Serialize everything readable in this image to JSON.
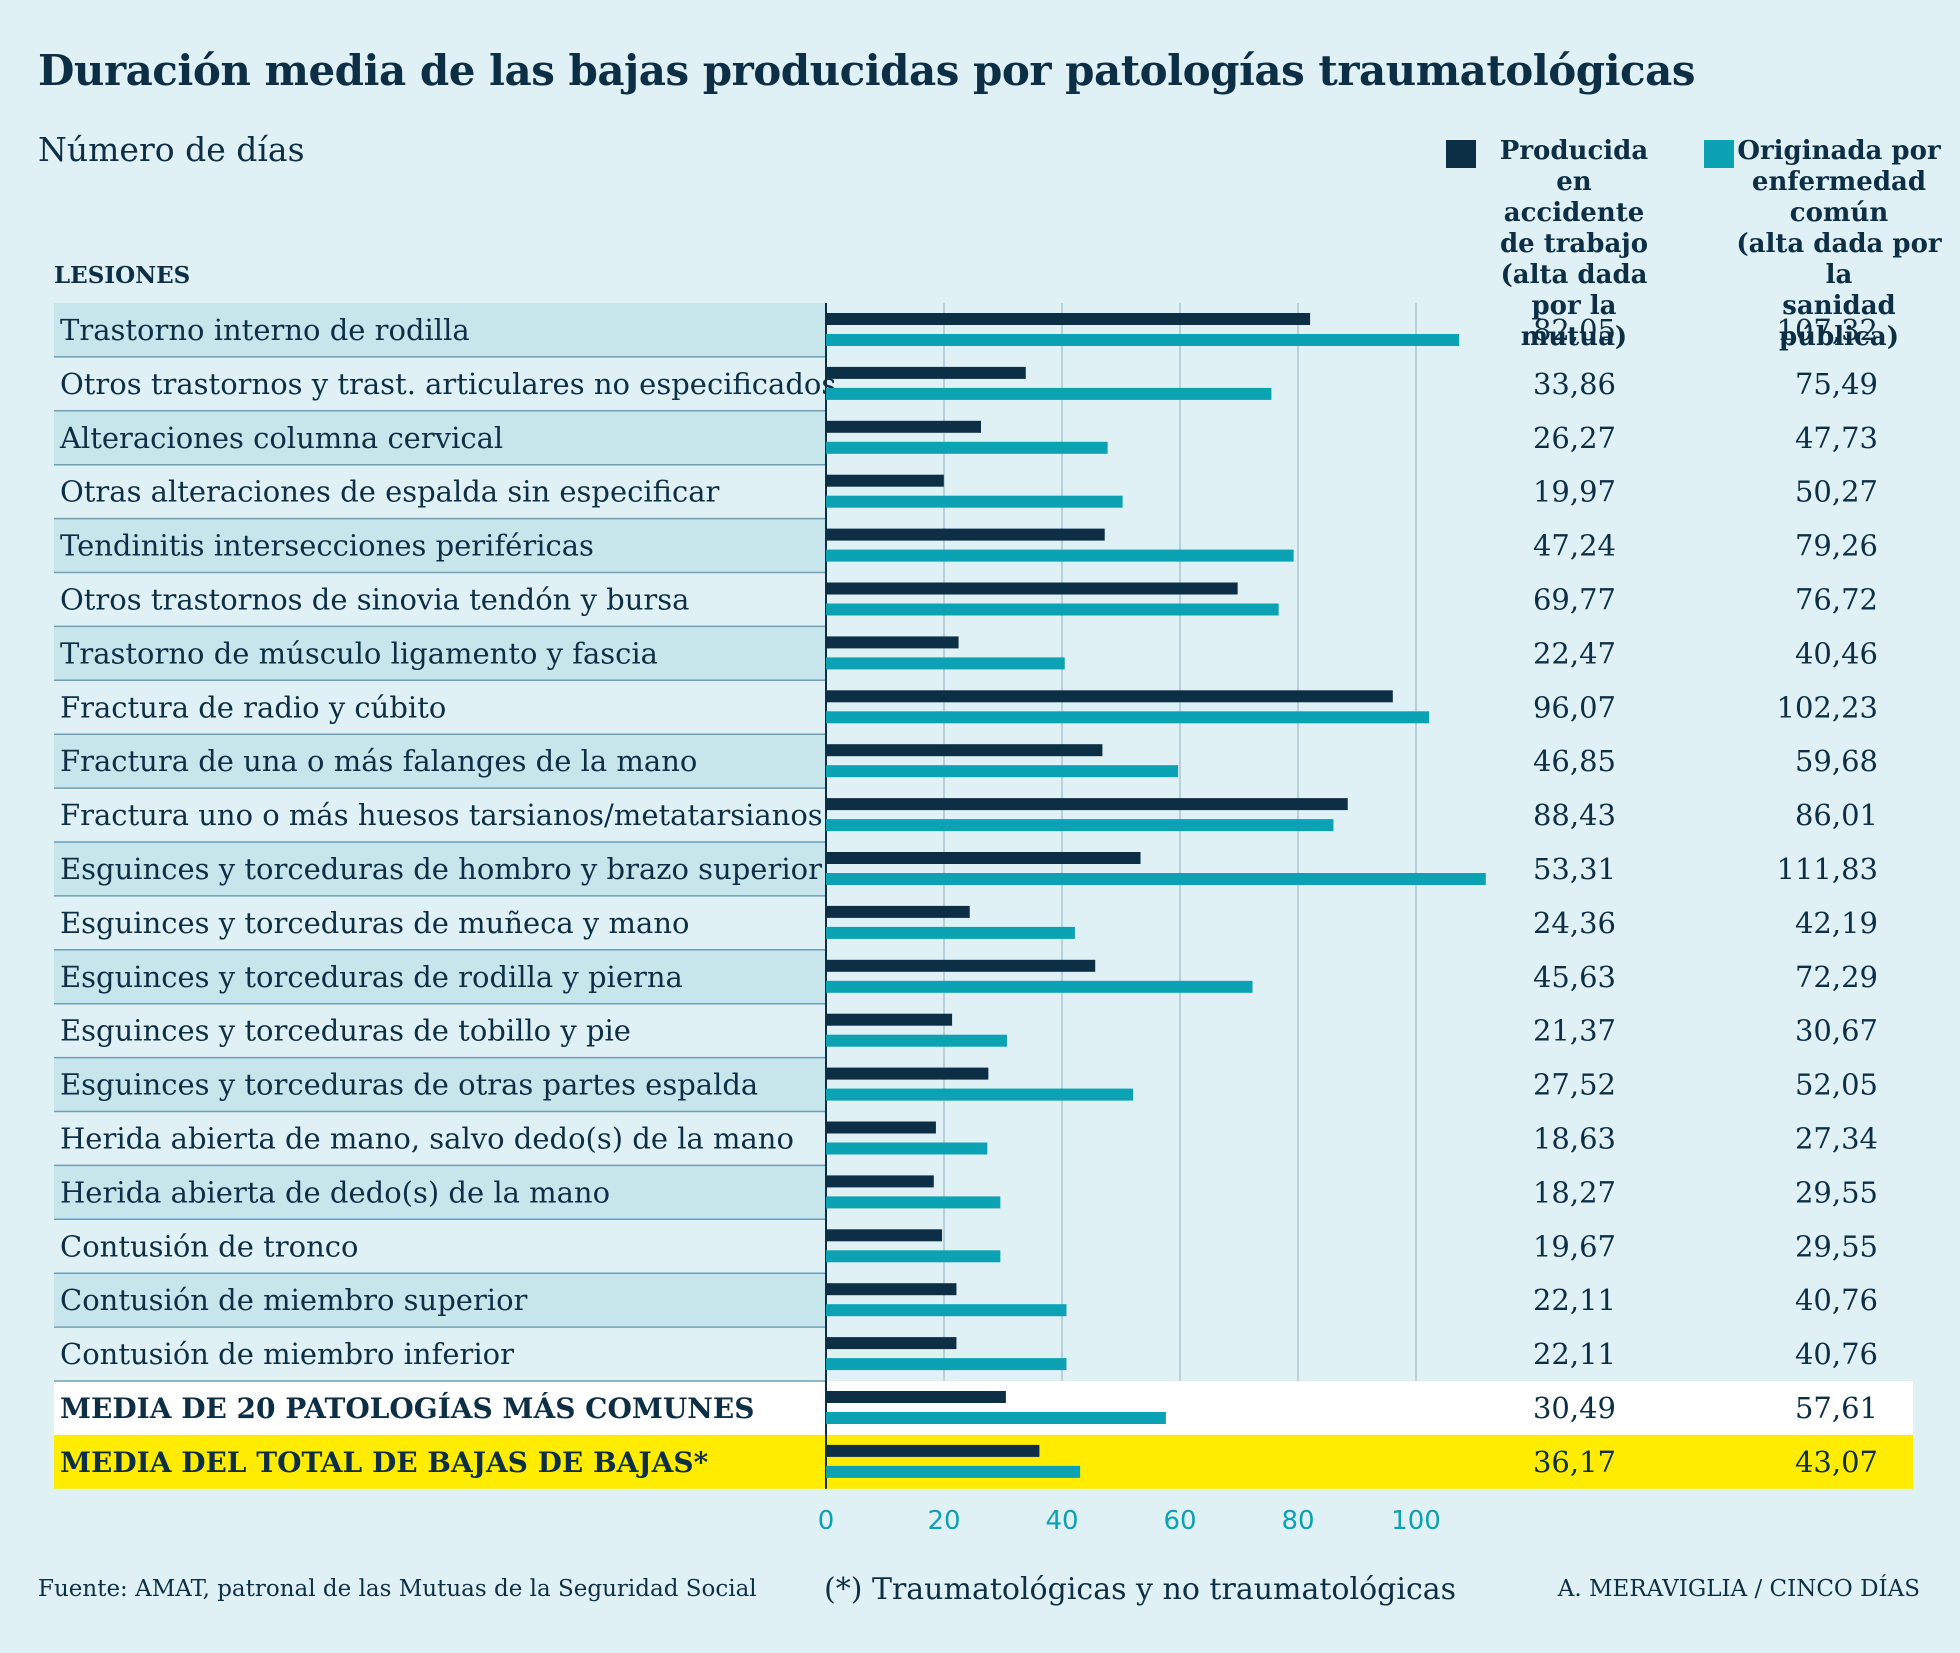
{
  "header": {
    "title": "Duración media de las bajas producidas por patologías traumatológicas",
    "subtitle": "Número de días",
    "column_heading": "LESIONES"
  },
  "legend": {
    "work": {
      "lines": [
        "Producida en",
        "accidente",
        "de trabajo",
        "(alta dada",
        "por la mutua)"
      ],
      "color": "#0d2f45"
    },
    "common": {
      "lines": [
        "Originada por",
        "enfermedad",
        "común",
        "(alta dada por la",
        "sanidad pública)"
      ],
      "color": "#0ba2b4"
    }
  },
  "chart_data": {
    "type": "bar",
    "orientation": "horizontal",
    "xlim": [
      0,
      100
    ],
    "x_ticks": [
      "0",
      "20",
      "40",
      "60",
      "80",
      "100"
    ],
    "series": [
      {
        "key": "work",
        "color": "#0d2f45"
      },
      {
        "key": "common",
        "color": "#0ba2b4"
      }
    ],
    "rows": [
      {
        "label": "Trastorno interno de rodilla",
        "work": 82.05,
        "common": 107.32,
        "work_text": "82,05",
        "common_text": "107,32"
      },
      {
        "label": "Otros trastornos y trast. articulares no especificados",
        "work": 33.86,
        "common": 75.49,
        "work_text": "33,86",
        "common_text": "75,49"
      },
      {
        "label": "Alteraciones columna cervical",
        "work": 26.27,
        "common": 47.73,
        "work_text": "26,27",
        "common_text": "47,73"
      },
      {
        "label": "Otras alteraciones de espalda sin especificar",
        "work": 19.97,
        "common": 50.27,
        "work_text": "19,97",
        "common_text": "50,27"
      },
      {
        "label": "Tendinitis intersecciones periféricas",
        "work": 47.24,
        "common": 79.26,
        "work_text": "47,24",
        "common_text": "79,26"
      },
      {
        "label": "Otros trastornos de sinovia tendón y bursa",
        "work": 69.77,
        "common": 76.72,
        "work_text": "69,77",
        "common_text": "76,72"
      },
      {
        "label": "Trastorno de músculo ligamento y fascia",
        "work": 22.47,
        "common": 40.46,
        "work_text": "22,47",
        "common_text": "40,46"
      },
      {
        "label": "Fractura de radio y cúbito",
        "work": 96.07,
        "common": 102.23,
        "work_text": "96,07",
        "common_text": "102,23"
      },
      {
        "label": "Fractura de una o más falanges de la mano",
        "work": 46.85,
        "common": 59.68,
        "work_text": "46,85",
        "common_text": "59,68"
      },
      {
        "label": "Fractura uno o más huesos tarsianos/metatarsianos",
        "work": 88.43,
        "common": 86.01,
        "work_text": "88,43",
        "common_text": "86,01"
      },
      {
        "label": "Esguinces y torceduras de hombro y brazo superior",
        "work": 53.31,
        "common": 111.83,
        "work_text": "53,31",
        "common_text": "111,83"
      },
      {
        "label": "Esguinces y torceduras de muñeca y mano",
        "work": 24.36,
        "common": 42.19,
        "work_text": "24,36",
        "common_text": "42,19"
      },
      {
        "label": "Esguinces y torceduras de rodilla y pierna",
        "work": 45.63,
        "common": 72.29,
        "work_text": "45,63",
        "common_text": "72,29"
      },
      {
        "label": "Esguinces y torceduras de tobillo y pie",
        "work": 21.37,
        "common": 30.67,
        "work_text": "21,37",
        "common_text": "30,67"
      },
      {
        "label": "Esguinces y torceduras de otras partes espalda",
        "work": 27.52,
        "common": 52.05,
        "work_text": "27,52",
        "common_text": "52,05"
      },
      {
        "label": "Herida abierta de mano, salvo dedo(s) de la mano",
        "work": 18.63,
        "common": 27.34,
        "work_text": "18,63",
        "common_text": "27,34"
      },
      {
        "label": "Herida abierta de dedo(s) de la mano",
        "work": 18.27,
        "common": 29.55,
        "work_text": "18,27",
        "common_text": "29,55"
      },
      {
        "label": "Contusión de tronco",
        "work": 19.67,
        "common": 29.55,
        "work_text": "19,67",
        "common_text": "29,55"
      },
      {
        "label": "Contusión de miembro superior",
        "work": 22.11,
        "common": 40.76,
        "work_text": "22,11",
        "common_text": "40,76"
      },
      {
        "label": "Contusión de miembro inferior",
        "work": 22.11,
        "common": 40.76,
        "work_text": "22,11",
        "common_text": "40,76"
      },
      {
        "label": "MEDIA DE 20 PATOLOGÍAS MÁS COMUNES",
        "work": 30.49,
        "common": 57.61,
        "work_text": "30,49",
        "common_text": "57,61",
        "style": "summary"
      },
      {
        "label": "MEDIA DEL TOTAL DE BAJAS DE BAJAS*",
        "work": 36.17,
        "common": 43.07,
        "work_text": "36,17",
        "common_text": "43,07",
        "style": "total"
      }
    ]
  },
  "colors": {
    "background": "#e0f1f5",
    "row_band": "#c7e6ec",
    "summary_band": "#ffffff",
    "total_band": "#ffec00",
    "separator": "#6f9fb5",
    "grid": "#a9c6d2",
    "tick_label": "#0ba2b4"
  },
  "footer": {
    "source": "Fuente: AMAT, patronal de las Mutuas de la Seguridad Social",
    "note": "(*) Traumatológicas y no traumatológicas",
    "credit": "A. MERAVIGLIA / CINCO DÍAS"
  }
}
